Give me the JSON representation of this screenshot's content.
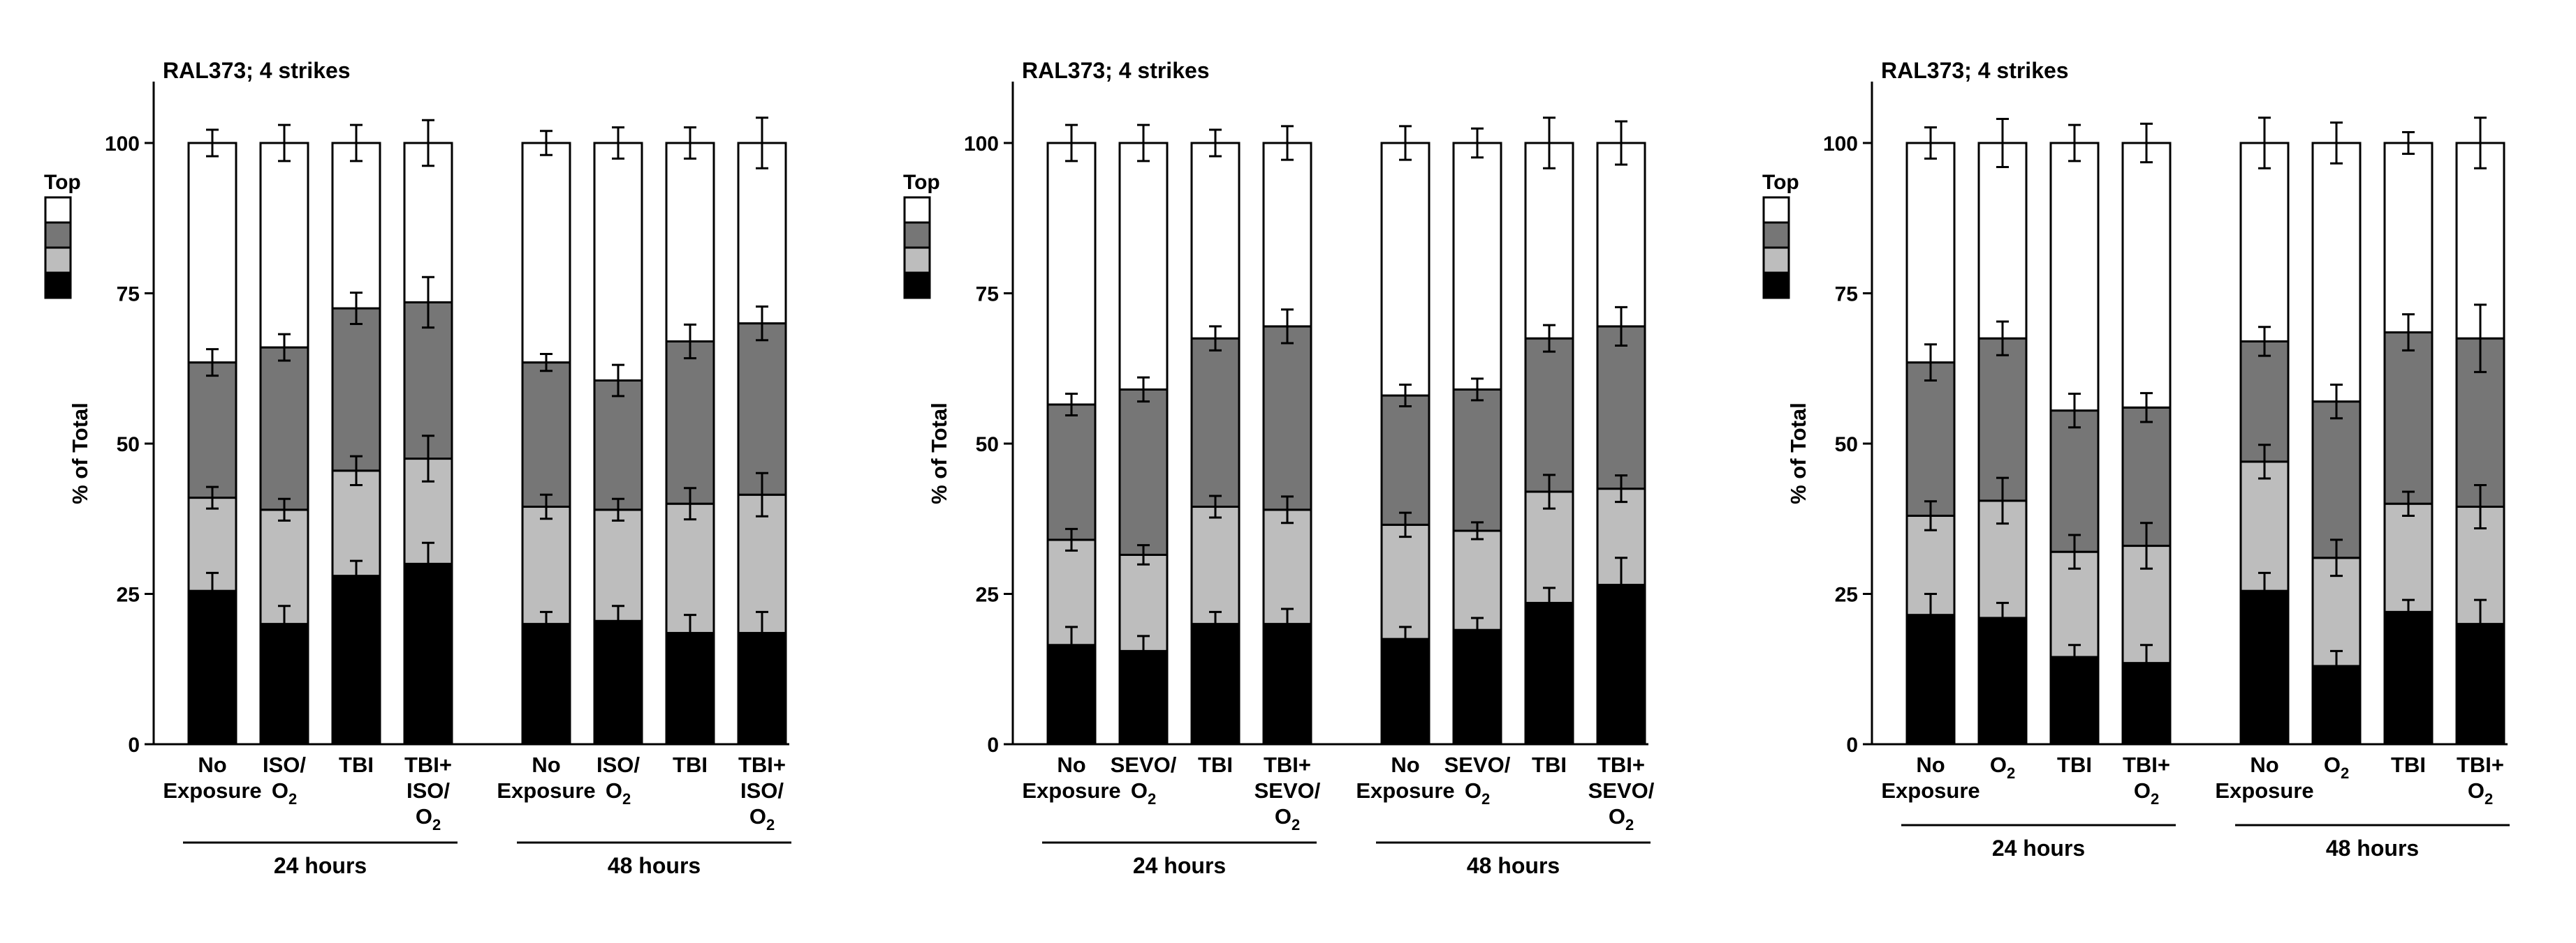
{
  "legend": {
    "title": "Top",
    "colors": [
      "#ffffff",
      "#767676",
      "#bdbdbd",
      "#000000"
    ]
  },
  "segment_colors": [
    "#000000",
    "#bdbdbd",
    "#767676",
    "#ffffff"
  ],
  "chart_data": [
    {
      "type": "bar",
      "stacked": true,
      "title": "RAL373; 4 strikes",
      "ylabel": "% of Total",
      "ylim": [
        0,
        100
      ],
      "yticks": [
        0,
        25,
        50,
        75,
        100
      ],
      "categories": [
        {
          "label": [
            "No",
            "Exposure"
          ],
          "group": "24 hours"
        },
        {
          "label": [
            "ISO/",
            "O2",
            ""
          ],
          "group": "24 hours"
        },
        {
          "label": [
            "TBI"
          ],
          "group": "24 hours"
        },
        {
          "label": [
            "TBI+",
            "ISO/",
            "O2"
          ],
          "group": "24 hours"
        },
        {
          "label": [
            "No",
            "Exposure"
          ],
          "group": "48 hours"
        },
        {
          "label": [
            "ISO/",
            "O2",
            ""
          ],
          "group": "48 hours"
        },
        {
          "label": [
            "TBI"
          ],
          "group": "48 hours"
        },
        {
          "label": [
            "TBI+",
            "ISO/",
            "O2"
          ],
          "group": "48 hours"
        }
      ],
      "groups": [
        "24 hours",
        "48 hours"
      ],
      "segments": [
        {
          "level": "bottom (black)",
          "values": [
            25.5,
            20,
            28,
            30,
            20,
            20.5,
            18.5,
            18.5
          ],
          "errors": [
            3,
            3,
            2.5,
            3.5,
            2,
            2.5,
            3,
            3.5
          ]
        },
        {
          "level": "light gray",
          "values": [
            15.5,
            19,
            17.5,
            17.5,
            19.5,
            18.5,
            21.5,
            23
          ],
          "errors": [
            1.8,
            1.8,
            2.4,
            3.8,
            2,
            1.8,
            2.6,
            3.6
          ]
        },
        {
          "level": "dark gray",
          "values": [
            22.5,
            27,
            27,
            26,
            24,
            21.5,
            27,
            28.5
          ],
          "errors": [
            2.2,
            2.2,
            2.6,
            4.2,
            1.4,
            2.6,
            2.8,
            2.8
          ]
        },
        {
          "level": "top (white)",
          "values": [
            36.5,
            34,
            27.5,
            26.5,
            36.5,
            39.5,
            33,
            30
          ],
          "errors": [
            2.2,
            3,
            3,
            3.8,
            2,
            2.6,
            2.6,
            4.2
          ]
        }
      ]
    },
    {
      "type": "bar",
      "stacked": true,
      "title": "RAL373; 4 strikes",
      "ylabel": "% of Total",
      "ylim": [
        0,
        100
      ],
      "yticks": [
        0,
        25,
        50,
        75,
        100
      ],
      "categories": [
        {
          "label": [
            "No",
            "Exposure"
          ],
          "group": "24 hours"
        },
        {
          "label": [
            "SEVO/",
            "O2"
          ],
          "group": "24 hours"
        },
        {
          "label": [
            "TBI"
          ],
          "group": "24 hours"
        },
        {
          "label": [
            "TBI+",
            "SEVO/",
            "O2"
          ],
          "group": "24 hours"
        },
        {
          "label": [
            "No",
            "Exposure"
          ],
          "group": "48 hours"
        },
        {
          "label": [
            "SEVO/",
            "O2"
          ],
          "group": "48 hours"
        },
        {
          "label": [
            "TBI"
          ],
          "group": "48 hours"
        },
        {
          "label": [
            "TBI+",
            "SEVO/",
            "O2"
          ],
          "group": "48 hours"
        }
      ],
      "groups": [
        "24 hours",
        "48 hours"
      ],
      "segments": [
        {
          "level": "bottom (black)",
          "values": [
            16.5,
            15.5,
            20,
            20,
            17.5,
            19,
            23.5,
            26.5
          ],
          "errors": [
            3,
            2.5,
            2,
            2.5,
            2,
            2,
            2.5,
            4.5
          ]
        },
        {
          "level": "light gray",
          "values": [
            17.5,
            16,
            19.5,
            19,
            19,
            16.5,
            18.5,
            16
          ],
          "errors": [
            1.8,
            1.6,
            1.8,
            2.2,
            2,
            1.4,
            2.8,
            2.2
          ]
        },
        {
          "level": "dark gray",
          "values": [
            22.5,
            27.5,
            28,
            30.5,
            21.5,
            23.5,
            25.5,
            27
          ],
          "errors": [
            1.8,
            2,
            2,
            2.8,
            1.8,
            1.8,
            2.2,
            3.2
          ]
        },
        {
          "level": "top (white)",
          "values": [
            43.5,
            41,
            32.5,
            30.5,
            42,
            41,
            32.5,
            30.5
          ],
          "errors": [
            3,
            3,
            2.2,
            2.8,
            2.8,
            2.4,
            4.2,
            3.6
          ]
        }
      ]
    },
    {
      "type": "bar",
      "stacked": true,
      "title": "RAL373; 4 strikes",
      "ylabel": "% of Total",
      "ylim": [
        0,
        100
      ],
      "yticks": [
        0,
        25,
        50,
        75,
        100
      ],
      "categories": [
        {
          "label": [
            "No",
            "Exposure"
          ],
          "group": "24 hours"
        },
        {
          "label": [
            "O2"
          ],
          "group": "24 hours"
        },
        {
          "label": [
            "TBI"
          ],
          "group": "24 hours"
        },
        {
          "label": [
            "TBI+",
            "O2"
          ],
          "group": "24 hours"
        },
        {
          "label": [
            "No",
            "Exposure"
          ],
          "group": "48 hours"
        },
        {
          "label": [
            "O2"
          ],
          "group": "48 hours"
        },
        {
          "label": [
            "TBI"
          ],
          "group": "48 hours"
        },
        {
          "label": [
            "TBI+",
            "O2"
          ],
          "group": "48 hours"
        }
      ],
      "groups": [
        "24 hours",
        "48 hours"
      ],
      "segments": [
        {
          "level": "bottom (black)",
          "values": [
            21.5,
            21,
            14.5,
            13.5,
            25.5,
            13,
            22,
            20
          ],
          "errors": [
            3.5,
            2.5,
            2,
            3,
            3,
            2.5,
            2,
            4
          ]
        },
        {
          "level": "light gray",
          "values": [
            16.5,
            19.5,
            17.5,
            19.5,
            21.5,
            18,
            18,
            19.5
          ],
          "errors": [
            2.4,
            3.8,
            2.8,
            3.8,
            2.8,
            3,
            2,
            3.6
          ]
        },
        {
          "level": "dark gray",
          "values": [
            25.5,
            27,
            23.5,
            23,
            20,
            26,
            28.5,
            28
          ],
          "errors": [
            3,
            2.8,
            2.8,
            2.4,
            2.4,
            2.8,
            3,
            5.6
          ]
        },
        {
          "level": "top (white)",
          "values": [
            36.5,
            32.5,
            44.5,
            44,
            33,
            43,
            31.5,
            32.5
          ],
          "errors": [
            2.6,
            4,
            3,
            3.2,
            4.2,
            3.4,
            1.8,
            4.2
          ]
        }
      ]
    }
  ]
}
